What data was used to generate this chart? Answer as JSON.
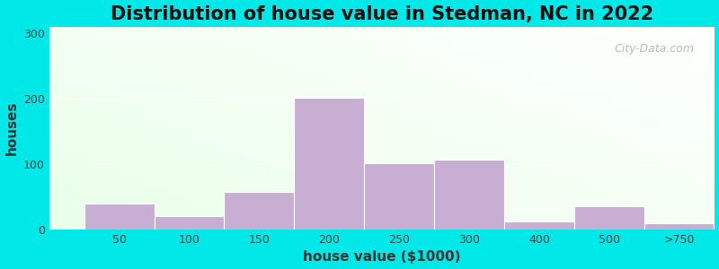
{
  "title": "Distribution of house value in Stedman, NC in 2022",
  "xlabel": "house value ($1000)",
  "ylabel": "houses",
  "bar_labels": [
    "50",
    "100",
    "150",
    "200",
    "250",
    "300",
    "400",
    "500",
    ">750"
  ],
  "bar_values": [
    40,
    20,
    57,
    202,
    102,
    107,
    13,
    35,
    10
  ],
  "bar_color": "#c9aed4",
  "bar_edge_color": "#c9aed4",
  "yticks": [
    0,
    100,
    200,
    300
  ],
  "ylim": [
    0,
    310
  ],
  "outer_bg": "#00e8e8",
  "title_fontsize": 15,
  "axis_label_fontsize": 11,
  "tick_fontsize": 9,
  "watermark_text": "City-Data.com"
}
